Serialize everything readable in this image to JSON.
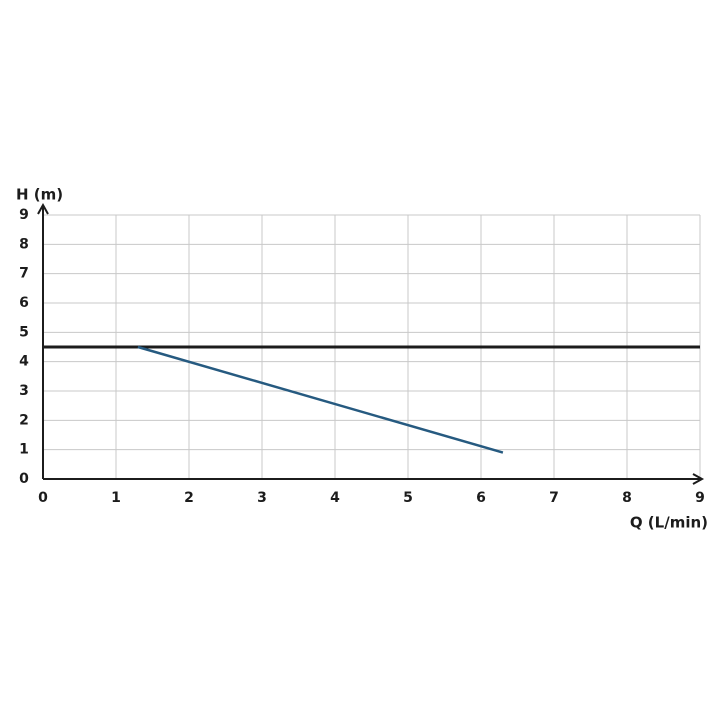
{
  "chart_data": {
    "type": "line",
    "ylabel": "H (m)",
    "xlabel": "Q (L/min)",
    "xlim": [
      0,
      9
    ],
    "xticks": [
      0,
      1,
      2,
      3,
      4,
      5,
      6,
      7,
      8,
      9
    ],
    "ylim": [
      0,
      9
    ],
    "yticks": [
      0,
      1,
      2,
      3,
      4,
      5,
      6,
      7,
      8,
      9
    ],
    "grid": true,
    "series": [
      {
        "color": "#1c1c1c",
        "x": [
          0,
          9
        ],
        "values": [
          4.5,
          4.5
        ]
      },
      {
        "color": "#265a80",
        "x": [
          1.3,
          6.3
        ],
        "values": [
          4.5,
          0.9
        ]
      }
    ]
  }
}
